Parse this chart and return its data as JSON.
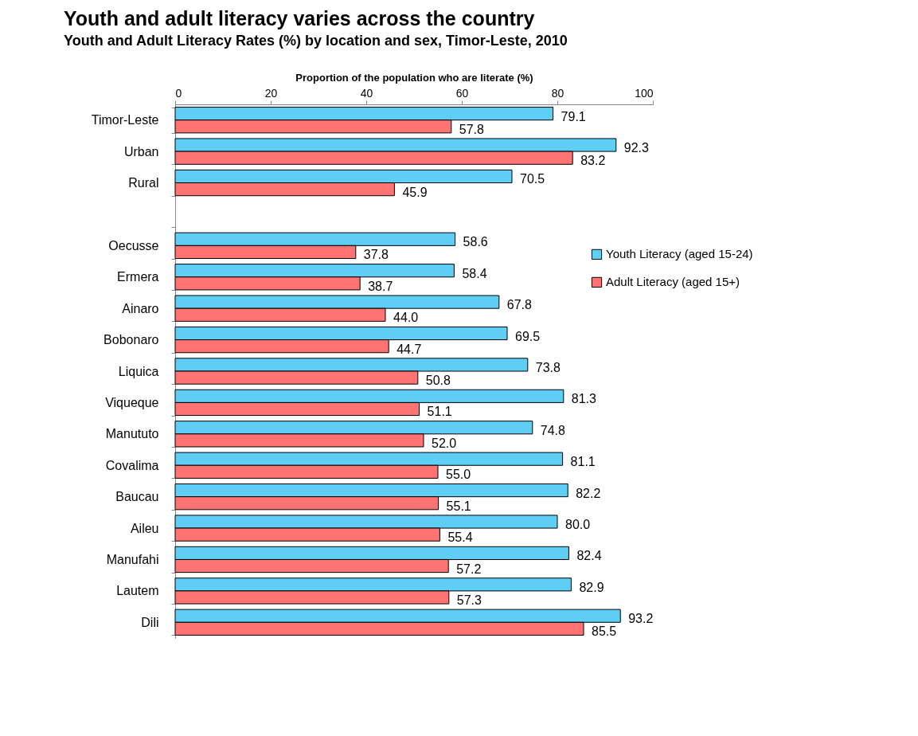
{
  "chart_data": {
    "type": "bar",
    "orientation": "horizontal",
    "title": "Youth and adult literacy varies across the country",
    "subtitle": "Youth and Adult Literacy Rates (%) by location and sex, Timor-Leste, 2010",
    "xlabel": "Proportion of the population  who are literate (%)",
    "categories": [
      "Timor-Leste",
      "Urban",
      "Rural",
      null,
      "Oecusse",
      "Ermera",
      "Ainaro",
      "Bobonaro",
      "Liquica",
      "Viqueque",
      "Manututo",
      "Covalima",
      "Baucau",
      "Aileu",
      "Manufahi",
      "Lautem",
      "Dili"
    ],
    "series": [
      {
        "name": "Youth Literacy (aged 15-24)",
        "color": "#5ecef5",
        "values": [
          79.1,
          92.3,
          70.5,
          null,
          58.6,
          58.4,
          67.8,
          69.5,
          73.8,
          81.3,
          74.8,
          81.1,
          82.2,
          80.0,
          82.4,
          82.9,
          93.2
        ]
      },
      {
        "name": "Adult Literacy (aged 15+)",
        "color": "#ff7373",
        "values": [
          57.8,
          83.2,
          45.9,
          null,
          37.8,
          38.7,
          44.0,
          44.7,
          50.8,
          51.1,
          52.0,
          55.0,
          55.1,
          55.4,
          57.2,
          57.3,
          85.5
        ]
      }
    ],
    "value_labels": [
      [
        "79.1",
        "92.3",
        "70.5",
        null,
        "58.6",
        "58.4",
        "67.8",
        "69.5",
        "73.8",
        "81.3",
        "74.8",
        "81.1",
        "82.2",
        "80.0",
        "82.4",
        "82.9",
        "93.2"
      ],
      [
        "57.8",
        "83.2",
        "45.9",
        null,
        "37.8",
        "38.7",
        "44.0",
        "44.7",
        "50.8",
        "51.1",
        "52.0",
        "55.0",
        "55.1",
        "55.4",
        "57.2",
        "57.3",
        "85.5"
      ]
    ],
    "xlim": [
      0,
      100
    ],
    "xticks": [
      0,
      20,
      40,
      60,
      80,
      100
    ],
    "grid": false,
    "legend": "right"
  }
}
